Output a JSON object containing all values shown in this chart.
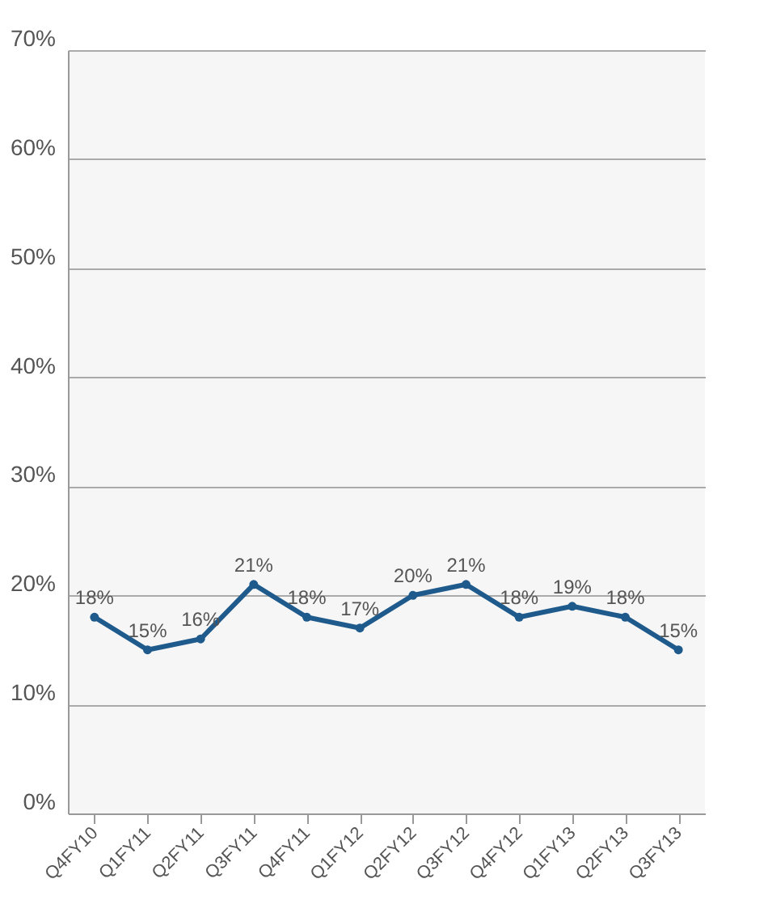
{
  "chart_data": {
    "type": "line",
    "categories": [
      "Q4FY10",
      "Q1FY11",
      "Q2FY11",
      "Q3FY11",
      "Q4FY11",
      "Q1FY12",
      "Q2FY12",
      "Q3FY12",
      "Q4FY12",
      "Q1FY13",
      "Q2FY13",
      "Q3FY13"
    ],
    "series": [
      {
        "color": "#1f5a8c",
        "values": [
          18,
          15,
          16,
          21,
          18,
          17,
          20,
          21,
          18,
          19,
          18,
          15
        ],
        "value_labels": [
          "18%",
          "15%",
          "16%",
          "21%",
          "18%",
          "17%",
          "20%",
          "21%",
          "18%",
          "19%",
          "18%",
          "15%"
        ]
      }
    ],
    "ylim": [
      0,
      70
    ],
    "yticks": [
      {
        "value": 0,
        "label": "0%"
      },
      {
        "value": 10,
        "label": "10%"
      },
      {
        "value": 20,
        "label": "20%"
      },
      {
        "value": 30,
        "label": "30%"
      },
      {
        "value": 40,
        "label": "40%"
      },
      {
        "value": 50,
        "label": "50%"
      },
      {
        "value": 60,
        "label": "60%"
      },
      {
        "value": 70,
        "label": "70%"
      }
    ],
    "grid": "y",
    "marker": "circle",
    "line_style": "solid"
  }
}
